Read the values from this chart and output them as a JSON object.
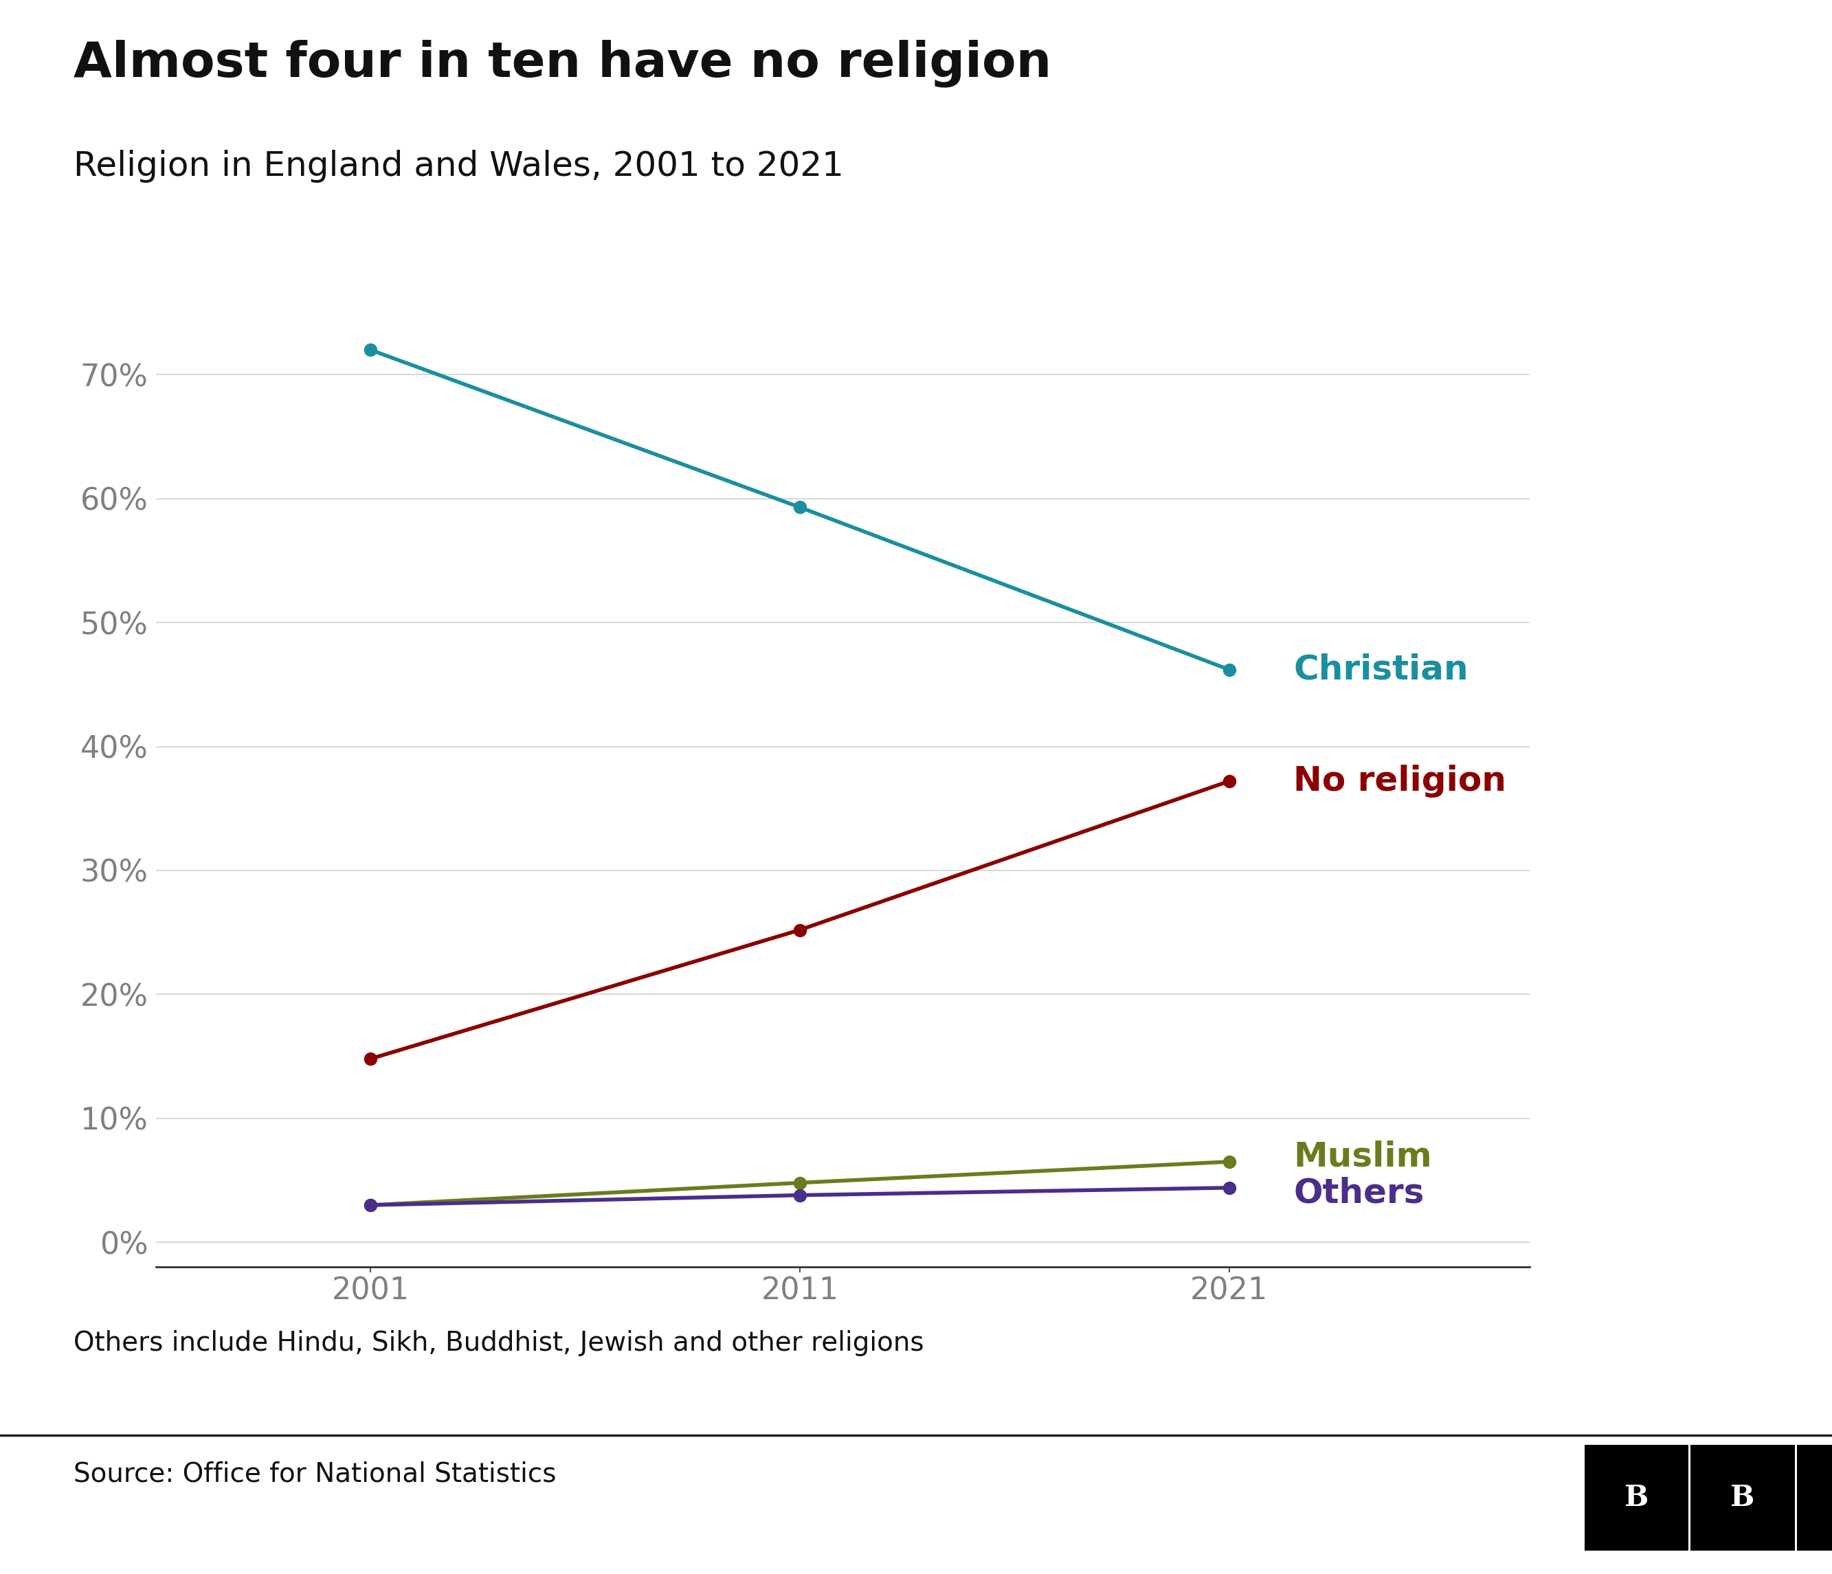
{
  "title": "Almost four in ten have no religion",
  "subtitle": "Religion in England and Wales, 2001 to 2021",
  "years": [
    2001,
    2011,
    2021
  ],
  "series": {
    "Christian": {
      "values": [
        72,
        59.3,
        46.2
      ],
      "color": "#1a8fa0",
      "label_color": "#1a8fa0"
    },
    "No religion": {
      "values": [
        14.8,
        25.2,
        37.2
      ],
      "color": "#8b0000",
      "label_color": "#8b0000"
    },
    "Muslim": {
      "values": [
        3.0,
        4.8,
        6.5
      ],
      "color": "#6b7c1e",
      "label_color": "#6b7c1e"
    },
    "Others": {
      "values": [
        3.0,
        3.8,
        4.4
      ],
      "color": "#4b2d8a",
      "label_color": "#4b2d8a"
    }
  },
  "label_offsets": {
    "Christian": 0,
    "No religion": 0,
    "Muslim": 0.4,
    "Others": -0.4
  },
  "yticks": [
    0,
    10,
    20,
    30,
    40,
    50,
    60,
    70
  ],
  "ylim": [
    -2,
    78
  ],
  "ytick_color": "#808080",
  "grid_color": "#d0d0d0",
  "footnote": "Others include Hindu, Sikh, Buddhist, Jewish and other religions",
  "source": "Source: Office for National Statistics",
  "bg_color": "#ffffff",
  "title_fontsize": 52,
  "subtitle_fontsize": 36,
  "label_fontsize": 36,
  "tick_fontsize": 32,
  "footnote_fontsize": 28,
  "source_fontsize": 28
}
